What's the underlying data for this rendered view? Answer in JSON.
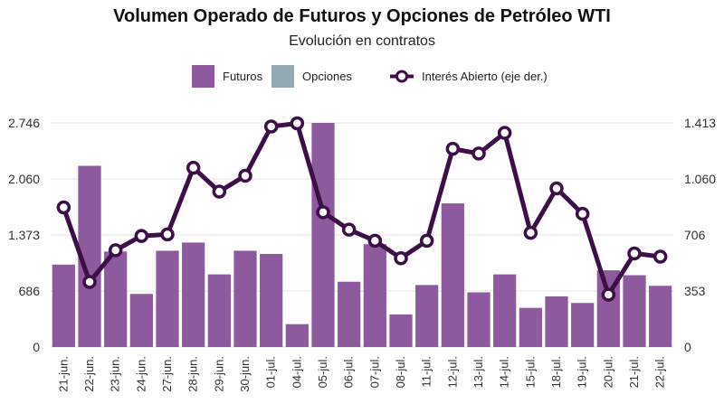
{
  "chart_data": {
    "type": "bar",
    "title": "Volumen Operado de Futuros y Opciones de Petróleo WTI",
    "subtitle": "Evolución en contratos",
    "categories": [
      "21-jun.",
      "22-jun.",
      "23-jun.",
      "24-jun.",
      "27-jun.",
      "28-jun.",
      "29-jun.",
      "30-jun.",
      "01-jul.",
      "04-jul.",
      "05-jul.",
      "06-jul.",
      "07-jul.",
      "08-jul.",
      "11-jul.",
      "12-jul.",
      "13-jul.",
      "14-jul.",
      "15-jul.",
      "18-jul.",
      "19-jul.",
      "20-jul.",
      "21-jul.",
      "22-jul."
    ],
    "series": [
      {
        "name": "Futuros",
        "type": "bar",
        "axis": "left",
        "color": "#8e5a9e",
        "values": [
          1010,
          2220,
          1170,
          650,
          1180,
          1280,
          890,
          1180,
          1140,
          280,
          2746,
          800,
          1260,
          400,
          760,
          1760,
          670,
          890,
          480,
          620,
          540,
          940,
          880,
          750
        ]
      },
      {
        "name": "Opciones",
        "type": "bar",
        "axis": "left",
        "color": "#93a9b3",
        "values": [
          0,
          0,
          0,
          0,
          0,
          0,
          0,
          0,
          0,
          0,
          0,
          0,
          0,
          0,
          0,
          0,
          0,
          0,
          0,
          0,
          0,
          0,
          0,
          0
        ]
      },
      {
        "name": "Interés Abierto (eje der.)",
        "type": "line",
        "axis": "right",
        "color": "#3d0f47",
        "values": [
          880,
          410,
          610,
          700,
          710,
          1130,
          980,
          1080,
          1390,
          1410,
          850,
          740,
          670,
          560,
          670,
          1250,
          1220,
          1350,
          720,
          1000,
          840,
          330,
          590,
          570
        ]
      }
    ],
    "y_left": {
      "ticks": [
        "0",
        "686",
        "1.373",
        "2.060",
        "2.746"
      ],
      "tick_values": [
        0,
        686,
        1373,
        2060,
        2746
      ],
      "range": [
        0,
        2746
      ]
    },
    "y_right": {
      "ticks": [
        "0",
        "353",
        "706",
        "1.060",
        "1.413"
      ],
      "tick_values": [
        0,
        353,
        706,
        1060,
        1413
      ],
      "range": [
        0,
        1413
      ]
    },
    "grid": true,
    "legend_position": "top"
  }
}
